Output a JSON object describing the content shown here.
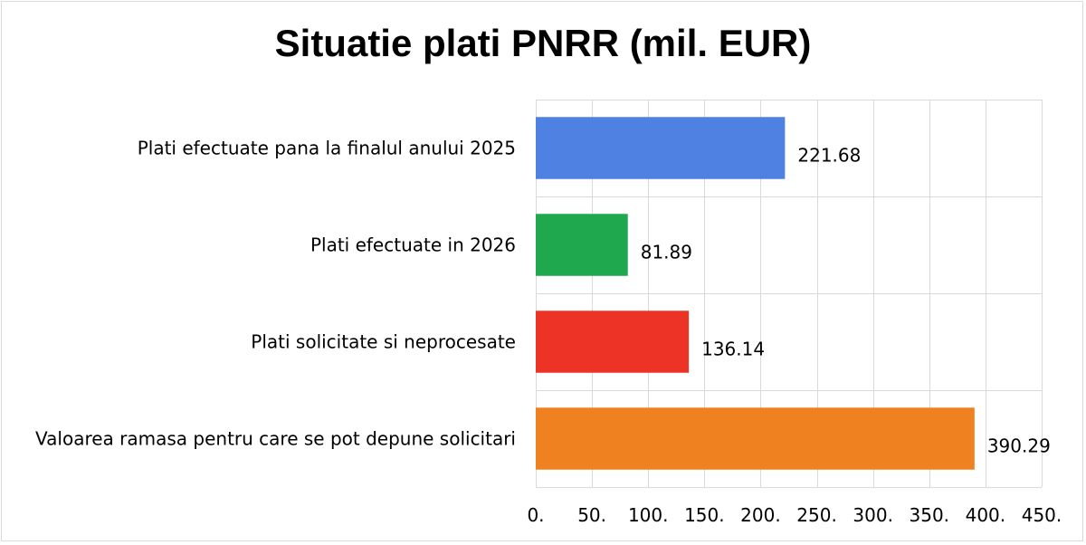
{
  "chart_data": {
    "type": "bar",
    "orientation": "horizontal",
    "title": "Situatie plati PNRR (mil. EUR)",
    "xlabel": "",
    "ylabel": "",
    "categories": [
      "Plati efectuate pana la finalul anului 2025",
      "Plati efectuate in 2026",
      "Plati solicitate si neprocesate",
      "Valoarea ramasa pentru care se pot depune solicitari"
    ],
    "values": [
      221.68,
      81.89,
      136.14,
      390.29
    ],
    "value_labels": [
      "221.68",
      "81.89",
      "136.14",
      "390.29"
    ],
    "colors": [
      "#4f81e3",
      "#20a84e",
      "#ec3325",
      "#f08121"
    ],
    "xlim": [
      0,
      450
    ],
    "ticks": [
      0,
      50,
      100,
      150,
      200,
      250,
      300,
      350,
      400,
      450
    ],
    "tick_labels": [
      "0.",
      "50.",
      "100.",
      "150.",
      "200.",
      "250.",
      "300.",
      "350.",
      "400.",
      "450."
    ],
    "grid": true,
    "legend": "none"
  }
}
